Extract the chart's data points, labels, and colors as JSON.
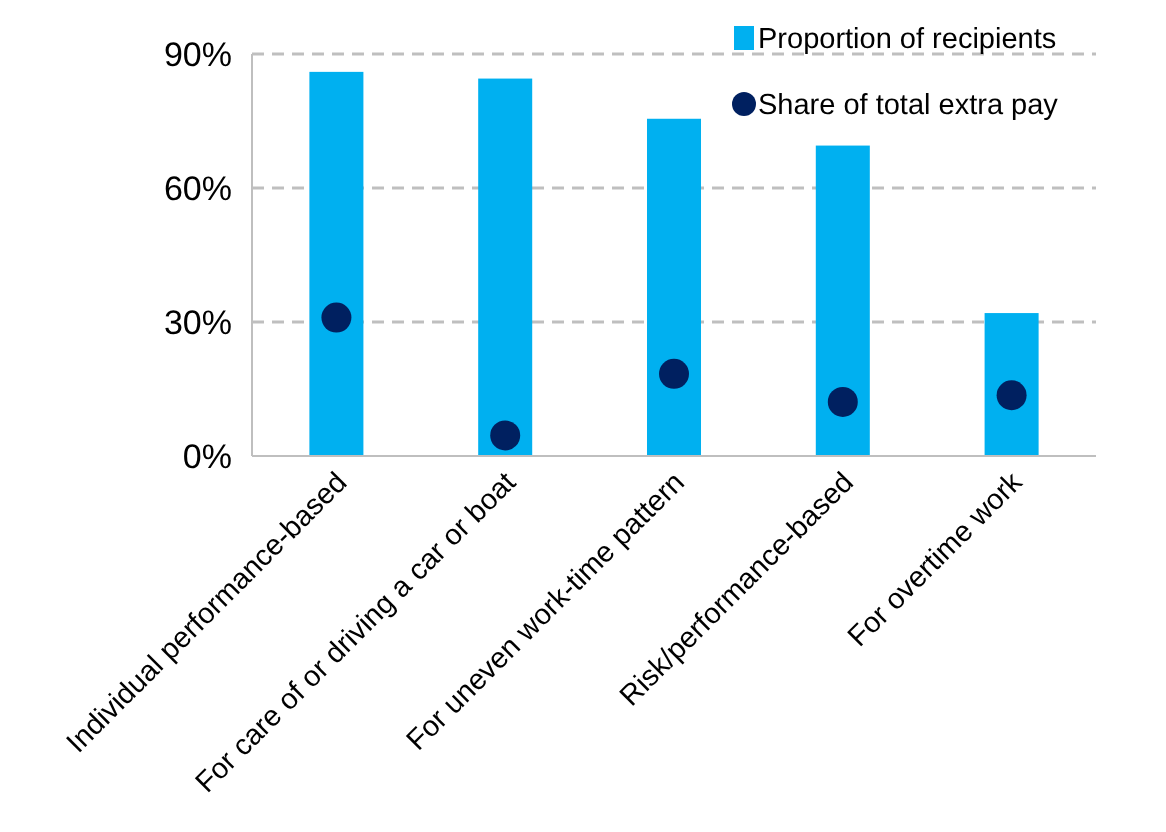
{
  "chart_data": {
    "type": "bar",
    "categories": [
      "Individual performance-based",
      "For care of or driving a car or boat",
      "For uneven work-time pattern",
      "Risk/performance-based",
      "For overtime work"
    ],
    "series": [
      {
        "name": "Proportion of recipients",
        "color": "#00b0f0",
        "values": [
          86,
          84.5,
          75.5,
          69.5,
          32
        ]
      },
      {
        "name": "Share of total extra pay",
        "type": "scatter",
        "color": "#002060",
        "values": [
          31,
          4.6,
          18.4,
          12.1,
          13.6
        ]
      }
    ],
    "ylim": [
      0,
      90
    ],
    "yticks": [
      {
        "value": 0,
        "label": "0%"
      },
      {
        "value": 30,
        "label": "30%"
      },
      {
        "value": 60,
        "label": "60%"
      },
      {
        "value": 90,
        "label": "90%"
      }
    ],
    "grid": "y",
    "legend": "top right",
    "marker": "circle"
  }
}
